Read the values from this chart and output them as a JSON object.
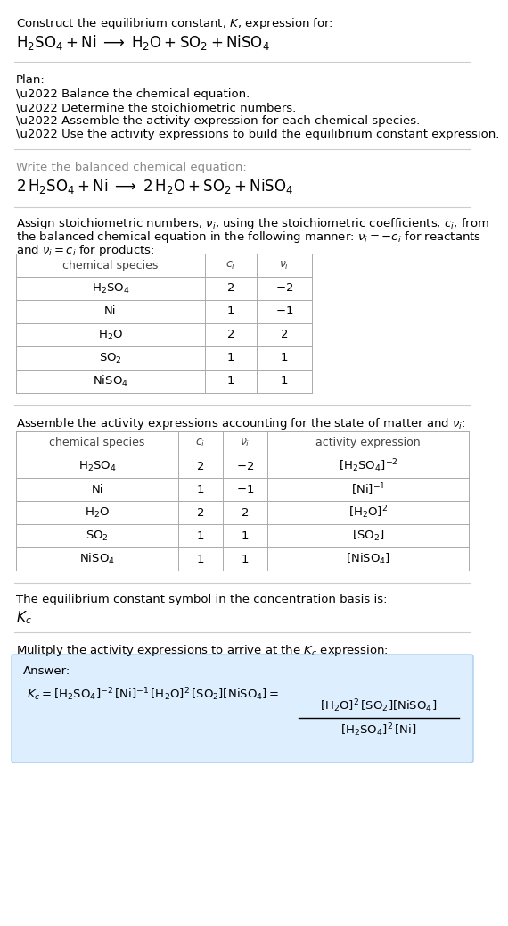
{
  "bg_color": "#ffffff",
  "text_color": "#000000",
  "gray_text": "#777777",
  "answer_box_color": "#ddeeff",
  "answer_box_edge": "#aaccee",
  "section1_title": "Construct the equilibrium constant, $K$, expression for:",
  "section1_reaction": "$\\mathrm{H_2SO_4 + Ni \\;\\longrightarrow\\; H_2O + SO_2 + NiSO_4}$",
  "plan_label": "Plan:",
  "plan_items": [
    "\\u2022 Balance the chemical equation.",
    "\\u2022 Determine the stoichiometric numbers.",
    "\\u2022 Assemble the activity expression for each chemical species.",
    "\\u2022 Use the activity expressions to build the equilibrium constant expression."
  ],
  "balanced_label": "Write the balanced chemical equation:",
  "balanced_eq": "$\\mathrm{2\\,H_2SO_4 + Ni \\;\\longrightarrow\\; 2\\,H_2O + SO_2 + NiSO_4}$",
  "stoich_line1": "Assign stoichiometric numbers, $\\nu_i$, using the stoichiometric coefficients, $c_i$, from",
  "stoich_line2": "the balanced chemical equation in the following manner: $\\nu_i = -c_i$ for reactants",
  "stoich_line3": "and $\\nu_i = c_i$ for products:",
  "table1_headers": [
    "chemical species",
    "$c_i$",
    "$\\nu_i$"
  ],
  "table1_rows": [
    [
      "$\\mathrm{H_2SO_4}$",
      "2",
      "$-2$"
    ],
    [
      "Ni",
      "1",
      "$-1$"
    ],
    [
      "$\\mathrm{H_2O}$",
      "2",
      "2"
    ],
    [
      "$\\mathrm{SO_2}$",
      "1",
      "1"
    ],
    [
      "$\\mathrm{NiSO_4}$",
      "1",
      "1"
    ]
  ],
  "assemble_intro": "Assemble the activity expressions accounting for the state of matter and $\\nu_i$:",
  "table2_headers": [
    "chemical species",
    "$c_i$",
    "$\\nu_i$",
    "activity expression"
  ],
  "table2_rows": [
    [
      "$\\mathrm{H_2SO_4}$",
      "2",
      "$-2$",
      "$[\\mathrm{H_2SO_4}]^{-2}$"
    ],
    [
      "Ni",
      "1",
      "$-1$",
      "$[\\mathrm{Ni}]^{-1}$"
    ],
    [
      "$\\mathrm{H_2O}$",
      "2",
      "2",
      "$[\\mathrm{H_2O}]^{2}$"
    ],
    [
      "$\\mathrm{SO_2}$",
      "1",
      "1",
      "$[\\mathrm{SO_2}]$"
    ],
    [
      "$\\mathrm{NiSO_4}$",
      "1",
      "1",
      "$[\\mathrm{NiSO_4}]$"
    ]
  ],
  "kc_label": "The equilibrium constant symbol in the concentration basis is:",
  "kc_symbol": "$K_c$",
  "multiply_label": "Mulitply the activity expressions to arrive at the $K_c$ expression:",
  "answer_label": "Answer:",
  "answer_lhs": "$K_c = [\\mathrm{H_2SO_4}]^{-2}\\,[\\mathrm{Ni}]^{-1}\\,[\\mathrm{H_2O}]^{2}\\,[\\mathrm{SO_2}][\\mathrm{NiSO_4}] = $",
  "answer_frac_num": "$[\\mathrm{H_2O}]^2\\,[\\mathrm{SO_2}][\\mathrm{NiSO_4}]$",
  "answer_frac_den": "$[\\mathrm{H_2SO_4}]^2\\,[\\mathrm{Ni}]$"
}
